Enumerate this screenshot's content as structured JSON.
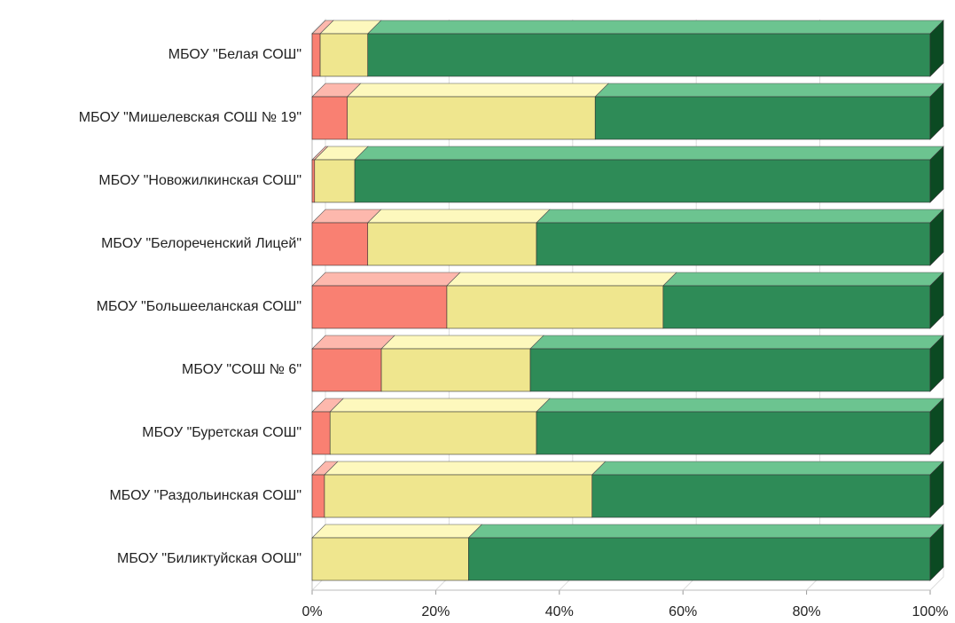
{
  "chart_data": {
    "type": "bar",
    "orientation": "horizontal",
    "stacked": true,
    "categories": [
      "МБОУ \"Белая СОШ\"",
      "МБОУ \"Мишелевская СОШ № 19\"",
      "МБОУ \"Новожилкинская СОШ\"",
      "МБОУ \"Белореченский Лицей\"",
      "МБОУ \"Большееланская СОШ\"",
      "МБОУ \"СОШ № 6\"",
      "МБОУ \"Буретская СОШ\"",
      "МБОУ \"Раздольинская СОШ\"",
      "МБОУ \"Биликтуйская ООШ\""
    ],
    "series": [
      {
        "color": "#f98072",
        "top_color": "#fdb8ad",
        "values": [
          1.3,
          5.7,
          0.4,
          9.0,
          21.8,
          11.2,
          2.9,
          2.0,
          0
        ]
      },
      {
        "color": "#efe68e",
        "top_color": "#fdf8bd",
        "values": [
          7.7,
          40.1,
          6.5,
          27.3,
          35.0,
          24.1,
          33.4,
          43.3,
          25.3
        ]
      },
      {
        "color": "#2e8b57",
        "top_color": "#6cc490",
        "side_color": "#0b4a22",
        "values": [
          91.0,
          54.2,
          93.1,
          63.7,
          43.2,
          64.7,
          63.7,
          54.7,
          74.7
        ]
      }
    ],
    "xlim": [
      0,
      100
    ],
    "xticks": [
      {
        "value": 0,
        "label": "0%"
      },
      {
        "value": 20,
        "label": "20%"
      },
      {
        "value": 40,
        "label": "40%"
      },
      {
        "value": 60,
        "label": "60%"
      },
      {
        "value": 80,
        "label": "80%"
      },
      {
        "value": 100,
        "label": "100%"
      }
    ],
    "grid": true
  }
}
